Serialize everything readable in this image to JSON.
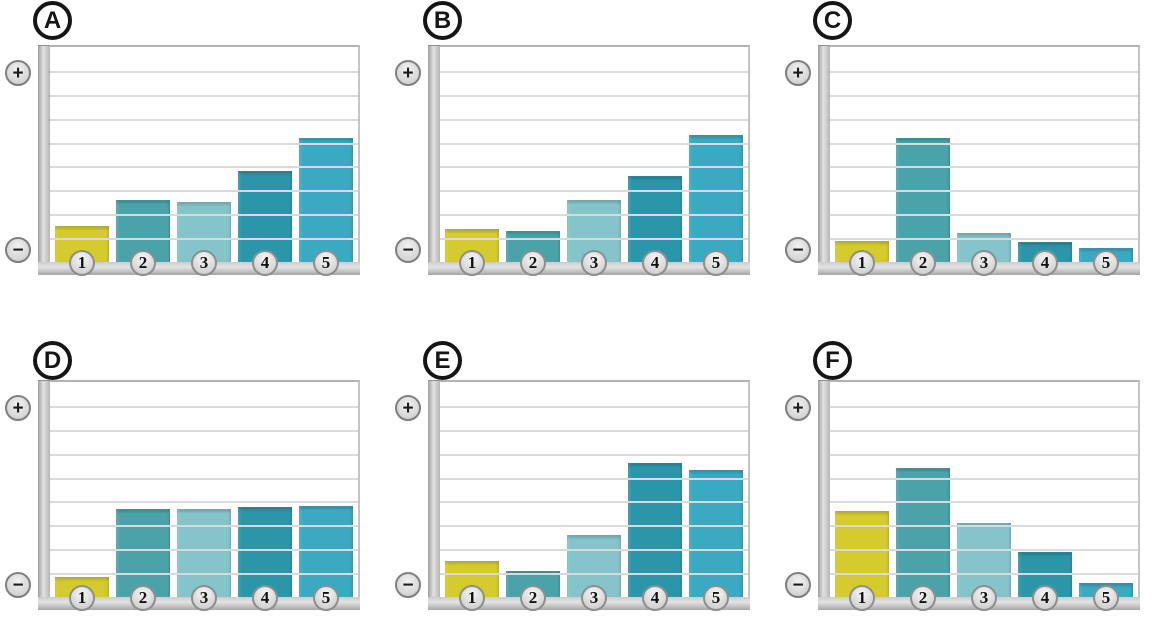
{
  "figure": {
    "description": "Six small bar charts labeled A to F, each with five numbered bars and a vertical axis marked with plus at top and minus at bottom",
    "axis_max_units": 9,
    "gridline_count": 8,
    "grid_color": "#dadada"
  },
  "icons": {
    "plus_symbol": "+",
    "minus_symbol": "−"
  },
  "bars": {
    "categories": [
      "1",
      "2",
      "3",
      "4",
      "5"
    ],
    "colors": [
      "#d4cb2f",
      "#4ba3aa",
      "#85c4ca",
      "#2b96a9",
      "#3aa9c2"
    ]
  },
  "chart_data": [
    {
      "type": "bar",
      "title": "A",
      "categories": [
        "1",
        "2",
        "3",
        "4",
        "5"
      ],
      "values": [
        1.5,
        2.6,
        2.5,
        3.8,
        5.2
      ],
      "xlabel": "",
      "ylabel": "",
      "ylim": [
        0,
        9
      ],
      "grid": true,
      "y_axis_top_symbol": "+",
      "y_axis_bottom_symbol": "−"
    },
    {
      "type": "bar",
      "title": "B",
      "categories": [
        "1",
        "2",
        "3",
        "4",
        "5"
      ],
      "values": [
        1.4,
        1.3,
        2.6,
        3.6,
        5.3
      ],
      "xlabel": "",
      "ylabel": "",
      "ylim": [
        0,
        9
      ],
      "grid": true,
      "y_axis_top_symbol": "+",
      "y_axis_bottom_symbol": "−"
    },
    {
      "type": "bar",
      "title": "C",
      "categories": [
        "1",
        "2",
        "3",
        "4",
        "5"
      ],
      "values": [
        0.9,
        5.2,
        1.2,
        0.85,
        0.6
      ],
      "xlabel": "",
      "ylabel": "",
      "ylim": [
        0,
        9
      ],
      "grid": true,
      "y_axis_top_symbol": "+",
      "y_axis_bottom_symbol": "−"
    },
    {
      "type": "bar",
      "title": "D",
      "categories": [
        "1",
        "2",
        "3",
        "4",
        "5"
      ],
      "values": [
        0.85,
        3.7,
        3.7,
        3.75,
        3.8
      ],
      "xlabel": "",
      "ylabel": "",
      "ylim": [
        0,
        9
      ],
      "grid": true,
      "y_axis_top_symbol": "+",
      "y_axis_bottom_symbol": "−"
    },
    {
      "type": "bar",
      "title": "E",
      "categories": [
        "1",
        "2",
        "3",
        "4",
        "5"
      ],
      "values": [
        1.5,
        1.1,
        2.6,
        5.6,
        5.3
      ],
      "xlabel": "",
      "ylabel": "",
      "ylim": [
        0,
        9
      ],
      "grid": true,
      "y_axis_top_symbol": "+",
      "y_axis_bottom_symbol": "−"
    },
    {
      "type": "bar",
      "title": "F",
      "categories": [
        "1",
        "2",
        "3",
        "4",
        "5"
      ],
      "values": [
        3.6,
        5.4,
        3.1,
        1.9,
        0.6
      ],
      "xlabel": "",
      "ylabel": "",
      "ylim": [
        0,
        9
      ],
      "grid": true,
      "y_axis_top_symbol": "+",
      "y_axis_bottom_symbol": "−"
    }
  ]
}
